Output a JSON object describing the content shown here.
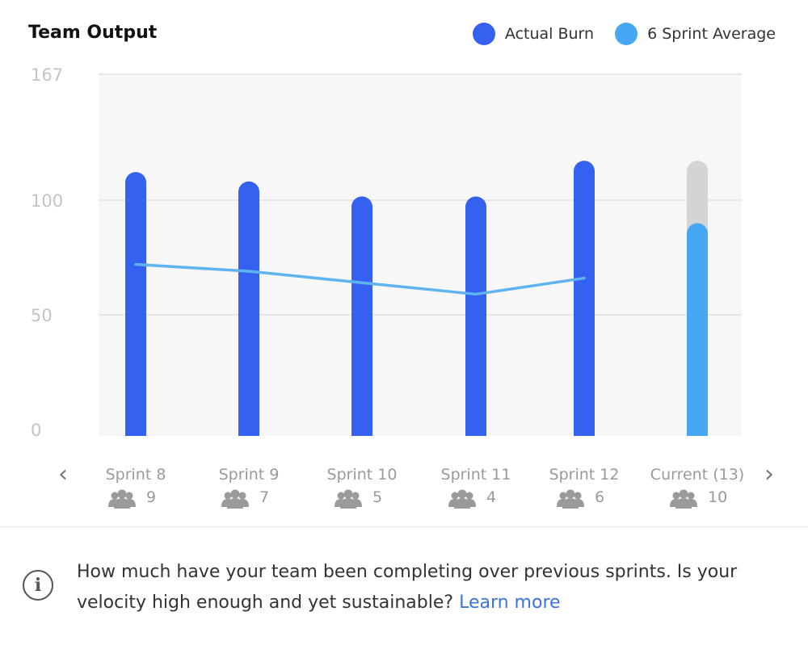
{
  "header": {
    "title": "Team Output"
  },
  "legend": [
    {
      "label": "Actual Burn",
      "color": "#3461f0"
    },
    {
      "label": "6 Sprint Average",
      "color": "#46a8f3"
    }
  ],
  "chart_data": {
    "type": "bar",
    "title": "Team Output",
    "categories": [
      "Sprint 8",
      "Sprint 9",
      "Sprint 10",
      "Sprint 11",
      "Sprint 12",
      "Current (13)"
    ],
    "team_sizes": [
      "9",
      "7",
      "5",
      "4",
      "6",
      "10"
    ],
    "series": [
      {
        "name": "Actual Burn",
        "values": [
          115,
          110,
          102,
          102,
          121,
          null
        ],
        "color": "#3461f0"
      },
      {
        "name": "6 Sprint Average",
        "type": "line",
        "values": [
          72,
          69,
          64,
          59,
          66,
          null
        ],
        "color": "#5fb3f0"
      }
    ],
    "current": {
      "committed": 121,
      "completed": 90,
      "committed_color": "#d4d4d4",
      "completed_color": "#46a8f3"
    },
    "yticks": [
      "0",
      "50",
      "100",
      "167"
    ],
    "ytick_values": [
      0,
      50,
      100,
      167
    ],
    "ylim": [
      0,
      167
    ],
    "grid": true,
    "legend_position": "top-right"
  },
  "nav": {
    "prev": "‹",
    "next": "›"
  },
  "footer": {
    "info_icon": "i",
    "description": "How much have your team been completing over previous sprints. Is your velocity high enough and yet sustainable? ",
    "learn_more": "Learn more"
  }
}
